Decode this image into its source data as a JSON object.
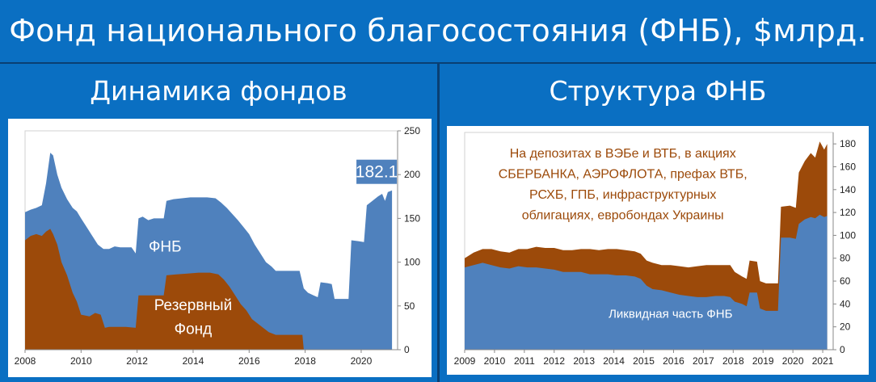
{
  "header": {
    "title": "Фонд национального благосостояния (ФНБ), $млрд."
  },
  "panels": {
    "left_title": "Динамика фондов",
    "right_title": "Структура ФНБ"
  },
  "colors": {
    "header_bg": "#0a6fc2",
    "blue_area": "#4f81bd",
    "brown_area": "#9c4a0a",
    "callout_bg": "#4f81bd"
  },
  "chart_data": [
    {
      "type": "area",
      "name_label": "Динамика фондов",
      "xlim": [
        2008,
        2021.3
      ],
      "ylim": [
        0,
        250
      ],
      "x_ticks": [
        2008,
        2010,
        2012,
        2014,
        2016,
        2018,
        2020
      ],
      "y_ticks": [
        0,
        50,
        100,
        150,
        200,
        250
      ],
      "y_axis_side": "right",
      "series": [
        {
          "name": "ФНБ",
          "color": "#4f81bd",
          "points": [
            [
              2008.0,
              157
            ],
            [
              2008.2,
              160
            ],
            [
              2008.4,
              162
            ],
            [
              2008.6,
              165
            ],
            [
              2008.75,
              190
            ],
            [
              2008.9,
              225
            ],
            [
              2009.0,
              222
            ],
            [
              2009.15,
              200
            ],
            [
              2009.3,
              185
            ],
            [
              2009.5,
              172
            ],
            [
              2009.7,
              162
            ],
            [
              2009.85,
              158
            ],
            [
              2010.0,
              150
            ],
            [
              2010.2,
              140
            ],
            [
              2010.4,
              130
            ],
            [
              2010.6,
              120
            ],
            [
              2010.8,
              115
            ],
            [
              2011.0,
              115
            ],
            [
              2011.2,
              118
            ],
            [
              2011.4,
              117
            ],
            [
              2011.6,
              117
            ],
            [
              2011.8,
              117
            ],
            [
              2011.95,
              110
            ],
            [
              2012.05,
              150
            ],
            [
              2012.2,
              152
            ],
            [
              2012.4,
              148
            ],
            [
              2012.6,
              150
            ],
            [
              2012.8,
              150
            ],
            [
              2012.95,
              150
            ],
            [
              2013.05,
              170
            ],
            [
              2013.3,
              172
            ],
            [
              2013.6,
              173
            ],
            [
              2013.9,
              174
            ],
            [
              2014.2,
              174
            ],
            [
              2014.5,
              174
            ],
            [
              2014.8,
              173
            ],
            [
              2015.0,
              168
            ],
            [
              2015.2,
              162
            ],
            [
              2015.4,
              155
            ],
            [
              2015.6,
              148
            ],
            [
              2015.8,
              140
            ],
            [
              2016.0,
              132
            ],
            [
              2016.2,
              120
            ],
            [
              2016.4,
              110
            ],
            [
              2016.6,
              100
            ],
            [
              2016.8,
              95
            ],
            [
              2016.95,
              90
            ],
            [
              2017.05,
              90
            ],
            [
              2017.3,
              90
            ],
            [
              2017.6,
              90
            ],
            [
              2017.8,
              90
            ],
            [
              2017.95,
              70
            ],
            [
              2018.1,
              65
            ],
            [
              2018.3,
              62
            ],
            [
              2018.45,
              60
            ],
            [
              2018.55,
              77
            ],
            [
              2018.8,
              76
            ],
            [
              2018.95,
              75
            ],
            [
              2019.05,
              58
            ],
            [
              2019.3,
              58
            ],
            [
              2019.55,
              58
            ],
            [
              2019.65,
              125
            ],
            [
              2019.9,
              124
            ],
            [
              2020.1,
              123
            ],
            [
              2020.2,
              165
            ],
            [
              2020.4,
              170
            ],
            [
              2020.6,
              175
            ],
            [
              2020.75,
              178
            ],
            [
              2020.85,
              170
            ],
            [
              2020.95,
              180
            ],
            [
              2021.1,
              182
            ]
          ]
        },
        {
          "name": "Резервный Фонд",
          "color": "#9c4a0a",
          "points": [
            [
              2008.0,
              125
            ],
            [
              2008.2,
              130
            ],
            [
              2008.4,
              132
            ],
            [
              2008.6,
              130
            ],
            [
              2008.75,
              135
            ],
            [
              2008.9,
              138
            ],
            [
              2009.0,
              132
            ],
            [
              2009.15,
              120
            ],
            [
              2009.3,
              100
            ],
            [
              2009.5,
              85
            ],
            [
              2009.7,
              65
            ],
            [
              2009.85,
              55
            ],
            [
              2010.0,
              40
            ],
            [
              2010.3,
              38
            ],
            [
              2010.5,
              42
            ],
            [
              2010.7,
              40
            ],
            [
              2010.85,
              25
            ],
            [
              2011.0,
              26
            ],
            [
              2011.3,
              26
            ],
            [
              2011.6,
              26
            ],
            [
              2011.95,
              25
            ],
            [
              2012.05,
              62
            ],
            [
              2012.3,
              62
            ],
            [
              2012.6,
              62
            ],
            [
              2012.95,
              62
            ],
            [
              2013.05,
              85
            ],
            [
              2013.4,
              86
            ],
            [
              2013.8,
              87
            ],
            [
              2014.2,
              88
            ],
            [
              2014.6,
              88
            ],
            [
              2014.9,
              86
            ],
            [
              2015.1,
              80
            ],
            [
              2015.3,
              72
            ],
            [
              2015.5,
              62
            ],
            [
              2015.7,
              52
            ],
            [
              2015.9,
              45
            ],
            [
              2016.1,
              35
            ],
            [
              2016.3,
              30
            ],
            [
              2016.5,
              25
            ],
            [
              2016.7,
              20
            ],
            [
              2016.95,
              17
            ],
            [
              2017.3,
              17
            ],
            [
              2017.7,
              17
            ],
            [
              2017.9,
              17
            ],
            [
              2017.95,
              0
            ]
          ]
        }
      ],
      "annotations": [
        {
          "text": "182.1",
          "type": "callout",
          "x": 2021.1,
          "y": 182
        },
        {
          "text": "ФНБ",
          "x": 2013.0,
          "y": 112
        },
        {
          "text": "Резервный",
          "x": 2014.0,
          "y": 45
        },
        {
          "text": "Фонд",
          "x": 2014.0,
          "y": 18
        }
      ]
    },
    {
      "type": "area",
      "name_label": "Структура ФНБ",
      "xlim": [
        2009,
        2021.35
      ],
      "ylim": [
        0,
        190
      ],
      "x_ticks": [
        2009,
        2010,
        2011,
        2012,
        2013,
        2014,
        2015,
        2016,
        2017,
        2018,
        2019,
        2020,
        2021
      ],
      "y_ticks": [
        0,
        20,
        40,
        60,
        80,
        100,
        120,
        140,
        160,
        180
      ],
      "y_axis_side": "right",
      "series": [
        {
          "name": "ФНБ",
          "color": "#9c4a0a",
          "points": [
            [
              2009.0,
              80
            ],
            [
              2009.3,
              85
            ],
            [
              2009.6,
              88
            ],
            [
              2009.9,
              88
            ],
            [
              2010.2,
              86
            ],
            [
              2010.5,
              85
            ],
            [
              2010.8,
              88
            ],
            [
              2011.1,
              88
            ],
            [
              2011.4,
              90
            ],
            [
              2011.7,
              89
            ],
            [
              2012.0,
              89
            ],
            [
              2012.3,
              87
            ],
            [
              2012.6,
              87
            ],
            [
              2012.9,
              88
            ],
            [
              2013.2,
              88
            ],
            [
              2013.5,
              87
            ],
            [
              2013.8,
              88
            ],
            [
              2014.1,
              88
            ],
            [
              2014.4,
              87
            ],
            [
              2014.7,
              86
            ],
            [
              2014.9,
              84
            ],
            [
              2015.1,
              78
            ],
            [
              2015.3,
              76
            ],
            [
              2015.6,
              74
            ],
            [
              2015.9,
              74
            ],
            [
              2016.2,
              73
            ],
            [
              2016.5,
              72
            ],
            [
              2016.8,
              73
            ],
            [
              2017.1,
              74
            ],
            [
              2017.4,
              74
            ],
            [
              2017.7,
              74
            ],
            [
              2017.9,
              74
            ],
            [
              2018.05,
              68
            ],
            [
              2018.3,
              64
            ],
            [
              2018.45,
              62
            ],
            [
              2018.55,
              78
            ],
            [
              2018.8,
              77
            ],
            [
              2018.9,
              60
            ],
            [
              2019.1,
              58
            ],
            [
              2019.3,
              58
            ],
            [
              2019.5,
              58
            ],
            [
              2019.6,
              125
            ],
            [
              2019.9,
              126
            ],
            [
              2020.1,
              124
            ],
            [
              2020.2,
              155
            ],
            [
              2020.4,
              165
            ],
            [
              2020.6,
              172
            ],
            [
              2020.75,
              168
            ],
            [
              2020.9,
              182
            ],
            [
              2021.05,
              175
            ],
            [
              2021.15,
              180
            ]
          ]
        },
        {
          "name": "Ликвидная часть ФНБ",
          "color": "#4f81bd",
          "points": [
            [
              2009.0,
              72
            ],
            [
              2009.3,
              74
            ],
            [
              2009.6,
              76
            ],
            [
              2009.9,
              74
            ],
            [
              2010.2,
              72
            ],
            [
              2010.5,
              71
            ],
            [
              2010.8,
              73
            ],
            [
              2011.1,
              72
            ],
            [
              2011.4,
              72
            ],
            [
              2011.7,
              71
            ],
            [
              2012.0,
              70
            ],
            [
              2012.3,
              68
            ],
            [
              2012.6,
              68
            ],
            [
              2012.9,
              68
            ],
            [
              2013.2,
              66
            ],
            [
              2013.5,
              66
            ],
            [
              2013.8,
              66
            ],
            [
              2014.1,
              65
            ],
            [
              2014.4,
              65
            ],
            [
              2014.7,
              64
            ],
            [
              2014.9,
              62
            ],
            [
              2015.1,
              56
            ],
            [
              2015.3,
              53
            ],
            [
              2015.6,
              52
            ],
            [
              2015.9,
              50
            ],
            [
              2016.2,
              48
            ],
            [
              2016.5,
              47
            ],
            [
              2016.8,
              46
            ],
            [
              2017.1,
              46
            ],
            [
              2017.4,
              47
            ],
            [
              2017.7,
              47
            ],
            [
              2017.9,
              46
            ],
            [
              2018.05,
              42
            ],
            [
              2018.3,
              40
            ],
            [
              2018.45,
              38
            ],
            [
              2018.55,
              50
            ],
            [
              2018.8,
              50
            ],
            [
              2018.9,
              36
            ],
            [
              2019.1,
              34
            ],
            [
              2019.3,
              34
            ],
            [
              2019.5,
              34
            ],
            [
              2019.6,
              98
            ],
            [
              2019.9,
              98
            ],
            [
              2020.1,
              97
            ],
            [
              2020.2,
              110
            ],
            [
              2020.4,
              114
            ],
            [
              2020.6,
              116
            ],
            [
              2020.75,
              115
            ],
            [
              2020.9,
              118
            ],
            [
              2021.05,
              116
            ],
            [
              2021.15,
              117
            ]
          ]
        }
      ],
      "annotations": [
        {
          "text": "На депозитах в ВЭБе и ВТБ, в акциях",
          "x": 2014.3,
          "y": 168
        },
        {
          "text": "СБЕРБАНКА, АЭРОФЛОТА, префах ВТБ,",
          "x": 2014.3,
          "y": 150
        },
        {
          "text": "РСХБ, ГПБ, инфраструктурных",
          "x": 2014.3,
          "y": 132
        },
        {
          "text": "облигациях, евробондах Украины",
          "x": 2014.3,
          "y": 114
        },
        {
          "text": "Ликвидная часть ФНБ",
          "x": 2015.9,
          "y": 28
        }
      ]
    }
  ]
}
